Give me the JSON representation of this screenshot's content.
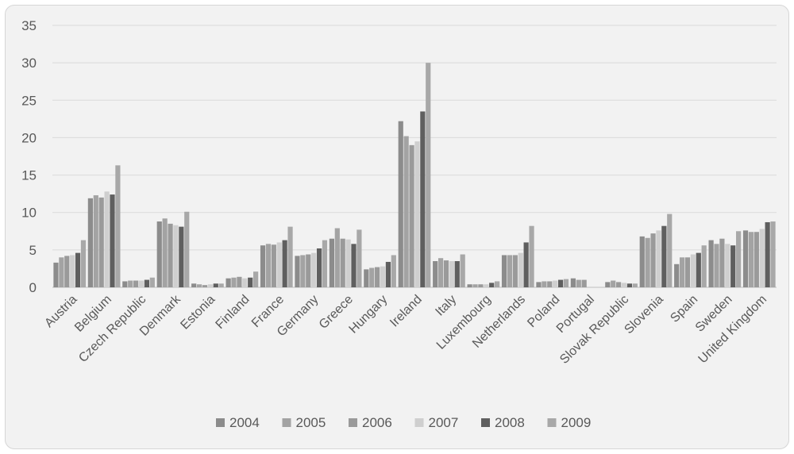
{
  "chart_data": {
    "type": "bar",
    "title": "",
    "xlabel": "",
    "ylabel": "",
    "ylim": [
      0,
      35
    ],
    "yticks": [
      0,
      5,
      10,
      15,
      20,
      25,
      30,
      35
    ],
    "grid": true,
    "legend_position": "bottom",
    "categories": [
      "Austria",
      "Belgium",
      "Czech Republic",
      "Denmark",
      "Estonia",
      "Finland",
      "France",
      "Germany",
      "Greece",
      "Hungary",
      "Ireland",
      "Italy",
      "Luxembourg",
      "Netherlands",
      "Poland",
      "Portugal",
      "Slovak Republic",
      "Slovenia",
      "Spain",
      "Sweden",
      "United Kingdom"
    ],
    "series": [
      {
        "name": "2004",
        "color": "#8c8c8c",
        "values": [
          3.3,
          11.9,
          0.8,
          8.8,
          0.5,
          1.2,
          5.6,
          4.2,
          6.5,
          2.4,
          22.2,
          3.5,
          0.4,
          4.3,
          0.7,
          1.2,
          0.7,
          6.8,
          3.1,
          6.3,
          7.6
        ]
      },
      {
        "name": "2005",
        "color": "#a3a3a3",
        "values": [
          4.0,
          12.3,
          0.9,
          9.2,
          0.4,
          1.3,
          5.8,
          4.3,
          7.9,
          2.6,
          20.2,
          3.9,
          0.4,
          4.3,
          0.8,
          1.0,
          0.9,
          6.6,
          4.0,
          5.8,
          7.4
        ]
      },
      {
        "name": "2006",
        "color": "#9a9a9a",
        "values": [
          4.2,
          12.0,
          0.9,
          8.5,
          0.3,
          1.4,
          5.7,
          4.4,
          6.5,
          2.7,
          19.0,
          3.6,
          0.4,
          4.3,
          0.8,
          1.0,
          0.7,
          7.2,
          4.0,
          6.5,
          7.4
        ]
      },
      {
        "name": "2007",
        "color": "#cfcfcf",
        "values": [
          4.3,
          12.8,
          0.9,
          8.3,
          0.4,
          1.2,
          6.0,
          4.6,
          6.4,
          2.8,
          19.5,
          3.5,
          0.4,
          4.6,
          0.9,
          null,
          0.6,
          7.6,
          4.4,
          5.8,
          7.8
        ]
      },
      {
        "name": "2008",
        "color": "#5f5f5f",
        "values": [
          4.6,
          12.4,
          1.0,
          8.1,
          0.5,
          1.3,
          6.3,
          5.2,
          5.8,
          3.4,
          23.5,
          3.5,
          0.6,
          6.0,
          1.0,
          null,
          0.5,
          8.2,
          4.6,
          5.6,
          8.7
        ]
      },
      {
        "name": "2009",
        "color": "#a8a8a8",
        "values": [
          6.3,
          16.3,
          1.3,
          10.1,
          0.5,
          2.1,
          8.1,
          6.3,
          7.7,
          4.3,
          30.0,
          4.4,
          0.8,
          8.2,
          1.1,
          null,
          0.5,
          9.8,
          5.6,
          7.5,
          8.8
        ]
      }
    ]
  }
}
